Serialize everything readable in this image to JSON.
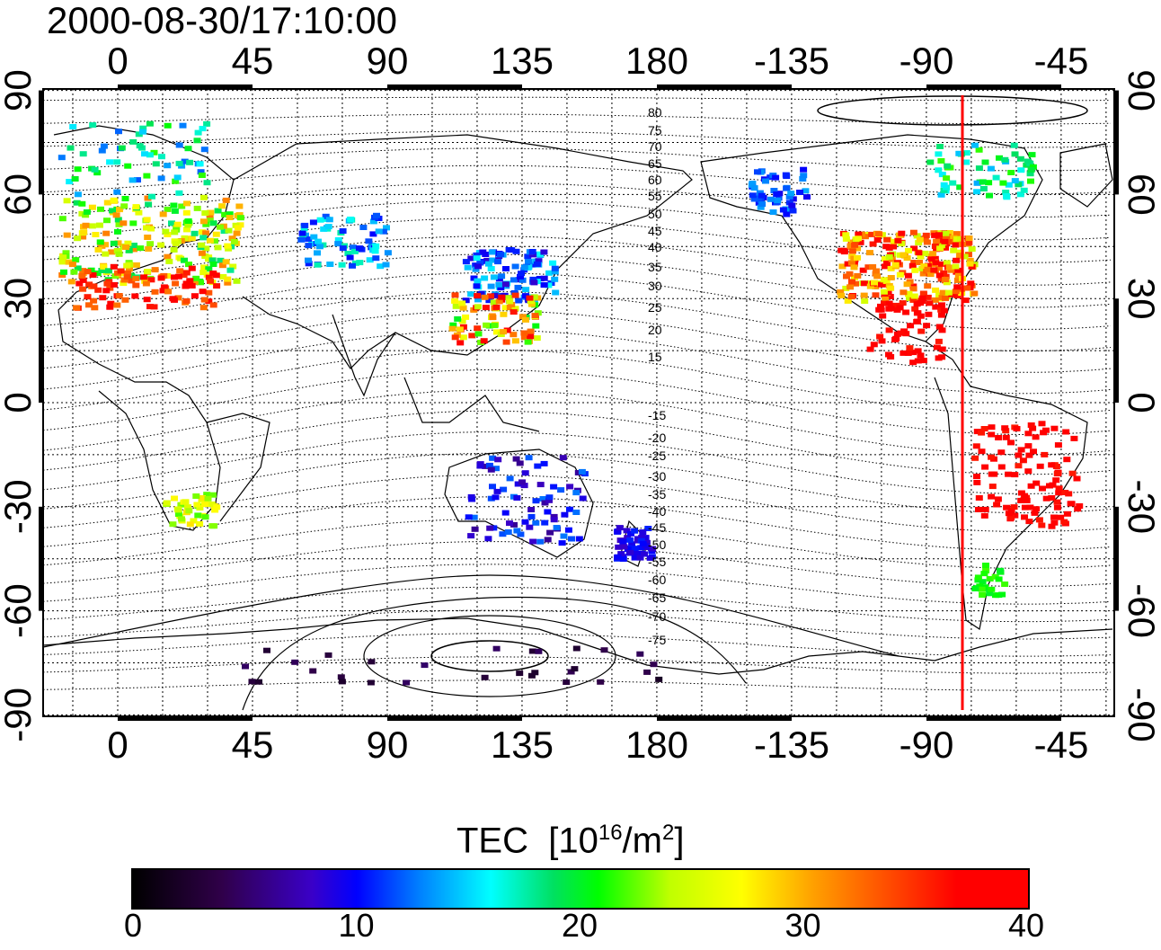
{
  "title": "2000-08-30/17:10:00",
  "map": {
    "top_lon_labels": [
      "0",
      "45",
      "90",
      "135",
      "180",
      "-135",
      "-90",
      "-45"
    ],
    "bottom_lon_labels": [
      "0",
      "45",
      "90",
      "135",
      "180",
      "-135",
      "-90",
      "-45"
    ],
    "left_lat_labels": [
      "90",
      "60",
      "30",
      "0",
      "-30",
      "-60",
      "-90"
    ],
    "right_lat_labels": [
      "90",
      "60",
      "30",
      "0",
      "-30",
      "-60",
      "-90"
    ],
    "contour_labels": [
      "80",
      "75",
      "70",
      "65",
      "60",
      "55",
      "50",
      "45",
      "40",
      "35",
      "30",
      "25",
      "20",
      "15",
      "-15",
      "-20",
      "-25",
      "-30",
      "-35",
      "-40",
      "-45",
      "-50",
      "-55",
      "-60",
      "-65",
      "-70",
      "-75"
    ],
    "marker_line_color": "#ff0000"
  },
  "colorbar": {
    "label": "TEC",
    "unit_base": "[10",
    "unit_exp1": "16",
    "unit_mid": "/m",
    "unit_exp2": "2",
    "unit_end": "]",
    "ticks": [
      "0",
      "10",
      "20",
      "30",
      "40"
    ],
    "min": 0,
    "max": 40
  }
}
